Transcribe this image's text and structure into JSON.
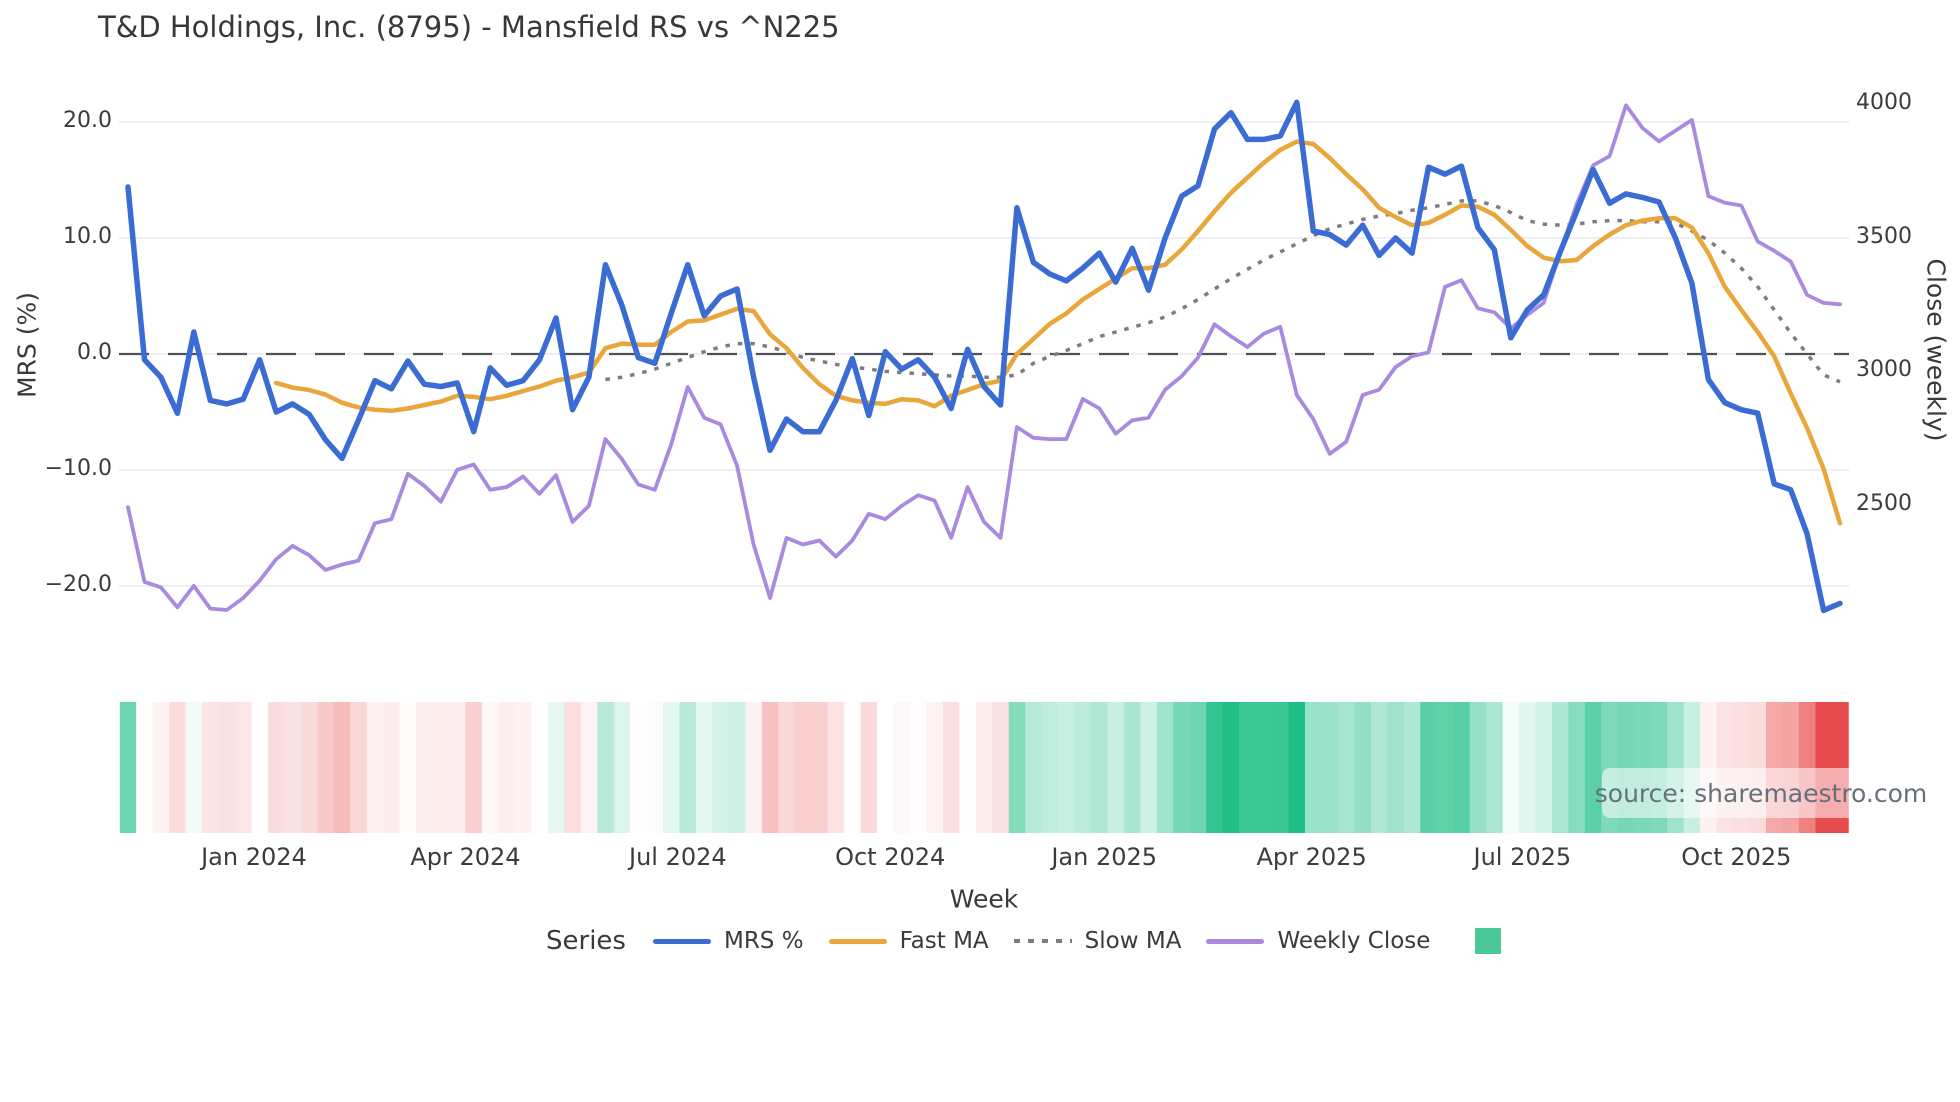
{
  "watermark": {
    "text": "source: sharemaestro.com"
  },
  "legend": {
    "series_label": "Series",
    "items": [
      "MRS %",
      "Fast MA",
      "Slow MA",
      "Weekly Close"
    ]
  },
  "chart_data": {
    "type": "line",
    "title": "T&D Holdings, Inc. (8795) - Mansfield RS vs ^N225",
    "x_unit": "week_index",
    "n_weeks": 105,
    "grid": true,
    "axes": {
      "left": {
        "title": "MRS (%)",
        "ticks": [
          {
            "v": 20,
            "label": "20.0"
          },
          {
            "v": 10,
            "label": "10.0"
          },
          {
            "v": 0,
            "label": "0.0"
          },
          {
            "v": -10,
            "label": "−10.0"
          },
          {
            "v": -20,
            "label": "−20.0"
          }
        ]
      },
      "right": {
        "title": "Close (weekly)",
        "ticks": [
          {
            "v": 4000,
            "label": "4000"
          },
          {
            "v": 3500,
            "label": "3500"
          },
          {
            "v": 3000,
            "label": "3000"
          },
          {
            "v": 2500,
            "label": "2500"
          }
        ]
      },
      "x": {
        "title": "Week",
        "ticks": [
          {
            "label": "Jan 2024",
            "week": 7.65
          },
          {
            "label": "Apr 2024",
            "week": 20.5
          },
          {
            "label": "Jul 2024",
            "week": 33.4
          },
          {
            "label": "Oct 2024",
            "week": 46.3
          },
          {
            "label": "Jan 2025",
            "week": 59.3
          },
          {
            "label": "Apr 2025",
            "week": 71.9
          },
          {
            "label": "Jul 2025",
            "week": 84.7
          },
          {
            "label": "Oct 2025",
            "week": 97.7
          }
        ]
      }
    },
    "zero_line": {
      "value": 0,
      "color": "#50505a",
      "style": "dashed"
    },
    "colors": {
      "grid": "#e8e8ef",
      "text": "#3a3a3a",
      "legend_square": "#4cc79a"
    },
    "series": [
      {
        "name": "MRS %",
        "axis": "left",
        "color": "#3a6cd4",
        "style": "solid",
        "width": 5.5,
        "values": [
          14.4,
          -0.5,
          -2.0,
          -5.1,
          1.9,
          -4.0,
          -4.3,
          -3.9,
          -0.5,
          -5.0,
          -4.3,
          -5.2,
          -7.4,
          -9.0,
          -5.7,
          -2.3,
          -3.0,
          -0.6,
          -2.6,
          -2.8,
          -2.5,
          -6.7,
          -1.2,
          -2.7,
          -2.3,
          -0.5,
          3.1,
          -4.8,
          -2.0,
          7.7,
          4.2,
          -0.3,
          -0.8,
          3.5,
          7.7,
          3.3,
          5.0,
          5.6,
          -2.0,
          -8.3,
          -5.6,
          -6.7,
          -6.7,
          -4.0,
          -0.4,
          -5.3,
          0.2,
          -1.3,
          -0.5,
          -2.0,
          -4.7,
          0.4,
          -2.8,
          -4.4,
          12.6,
          7.9,
          6.9,
          6.3,
          7.4,
          8.7,
          6.2,
          9.1,
          5.5,
          10.0,
          13.6,
          14.5,
          19.4,
          20.8,
          18.5,
          18.5,
          18.8,
          21.7,
          10.6,
          10.3,
          9.4,
          11.1,
          8.5,
          10.0,
          8.7,
          16.1,
          15.5,
          16.2,
          10.9,
          9.0,
          1.4,
          3.8,
          5.1,
          8.8,
          12.3,
          15.9,
          13.0,
          13.8,
          13.5,
          13.1,
          10.0,
          6.1,
          -2.2,
          -4.2,
          -4.8,
          -5.1,
          -11.2,
          -11.7,
          -15.5,
          -22.1,
          -21.5
        ]
      },
      {
        "name": "Fast MA",
        "axis": "left",
        "color": "#e9a63b",
        "style": "solid",
        "width": 4.5,
        "values": [
          null,
          null,
          null,
          null,
          null,
          null,
          null,
          null,
          null,
          -2.5,
          -2.9,
          -3.1,
          -3.5,
          -4.2,
          -4.6,
          -4.8,
          -4.9,
          -4.7,
          -4.4,
          -4.1,
          -3.6,
          -3.7,
          -3.9,
          -3.6,
          -3.2,
          -2.8,
          -2.3,
          -2.0,
          -1.6,
          0.5,
          0.9,
          0.8,
          0.8,
          1.9,
          2.8,
          2.9,
          3.4,
          3.9,
          3.7,
          1.7,
          0.5,
          -1.2,
          -2.6,
          -3.6,
          -4.0,
          -4.2,
          -4.3,
          -3.9,
          -4.0,
          -4.5,
          -3.6,
          -3.1,
          -2.6,
          -2.3,
          0.0,
          1.3,
          2.6,
          3.5,
          4.7,
          5.6,
          6.5,
          7.4,
          7.4,
          7.7,
          9.0,
          10.6,
          12.3,
          13.9,
          15.2,
          16.5,
          17.6,
          18.3,
          18.1,
          16.9,
          15.5,
          14.2,
          12.6,
          11.8,
          11.1,
          11.3,
          12.0,
          12.8,
          12.7,
          12.0,
          10.7,
          9.3,
          8.3,
          8.0,
          8.1,
          9.3,
          10.3,
          11.1,
          11.5,
          11.7,
          11.7,
          10.9,
          8.7,
          5.8,
          3.8,
          1.9,
          -0.2,
          -3.4,
          -6.4,
          -9.9,
          -14.6
        ]
      },
      {
        "name": "Slow MA",
        "axis": "left",
        "color": "#7d7d7d",
        "style": "dotted",
        "width": 3.5,
        "values": [
          null,
          null,
          null,
          null,
          null,
          null,
          null,
          null,
          null,
          null,
          null,
          null,
          null,
          null,
          null,
          null,
          null,
          null,
          null,
          null,
          null,
          null,
          null,
          null,
          null,
          null,
          null,
          null,
          null,
          -2.2,
          -2.0,
          -1.7,
          -1.3,
          -0.8,
          -0.3,
          0.2,
          0.6,
          0.9,
          0.9,
          0.6,
          0.2,
          -0.3,
          -0.6,
          -0.9,
          -1.1,
          -1.3,
          -1.5,
          -1.6,
          -1.7,
          -1.8,
          -1.9,
          -1.9,
          -2.0,
          -2.0,
          -1.8,
          -0.8,
          -0.2,
          0.3,
          0.9,
          1.5,
          1.9,
          2.3,
          2.7,
          3.2,
          3.9,
          4.7,
          5.6,
          6.5,
          7.3,
          8.1,
          8.8,
          9.5,
          10.2,
          10.8,
          11.2,
          11.6,
          11.9,
          12.1,
          12.4,
          12.6,
          12.9,
          13.2,
          13.2,
          12.8,
          12.2,
          11.5,
          11.2,
          11.1,
          11.2,
          11.4,
          11.5,
          11.5,
          11.4,
          11.4,
          11.3,
          10.6,
          9.8,
          8.7,
          7.4,
          5.8,
          3.8,
          1.8,
          0.0,
          -1.8,
          -2.4
        ]
      },
      {
        "name": "Weekly Close",
        "axis": "right",
        "color": "#a98ade",
        "style": "solid",
        "width": 3.8,
        "values": [
          2490,
          2210,
          2190,
          2115,
          2195,
          2110,
          2105,
          2150,
          2215,
          2295,
          2345,
          2310,
          2255,
          2275,
          2290,
          2430,
          2445,
          2615,
          2570,
          2510,
          2630,
          2650,
          2555,
          2565,
          2605,
          2540,
          2610,
          2435,
          2495,
          2745,
          2670,
          2575,
          2555,
          2725,
          2940,
          2825,
          2800,
          2645,
          2350,
          2150,
          2375,
          2350,
          2365,
          2305,
          2365,
          2465,
          2445,
          2495,
          2535,
          2515,
          2375,
          2565,
          2435,
          2375,
          2790,
          2750,
          2745,
          2745,
          2895,
          2860,
          2765,
          2815,
          2825,
          2930,
          2980,
          3050,
          3175,
          3130,
          3090,
          3140,
          3165,
          2910,
          2820,
          2690,
          2735,
          2910,
          2930,
          3015,
          3055,
          3070,
          3315,
          3340,
          3235,
          3220,
          3160,
          3210,
          3255,
          3445,
          3625,
          3770,
          3805,
          3995,
          3910,
          3860,
          3900,
          3940,
          3655,
          3630,
          3620,
          3485,
          3450,
          3410,
          3285,
          3255,
          3250
        ]
      }
    ],
    "heatmap": {
      "based_on": "MRS %",
      "positive_color": "#1fbe87",
      "negative_color": "#e84b4b",
      "saturation_abs": 21,
      "legend_color": "#4cc79a"
    }
  }
}
